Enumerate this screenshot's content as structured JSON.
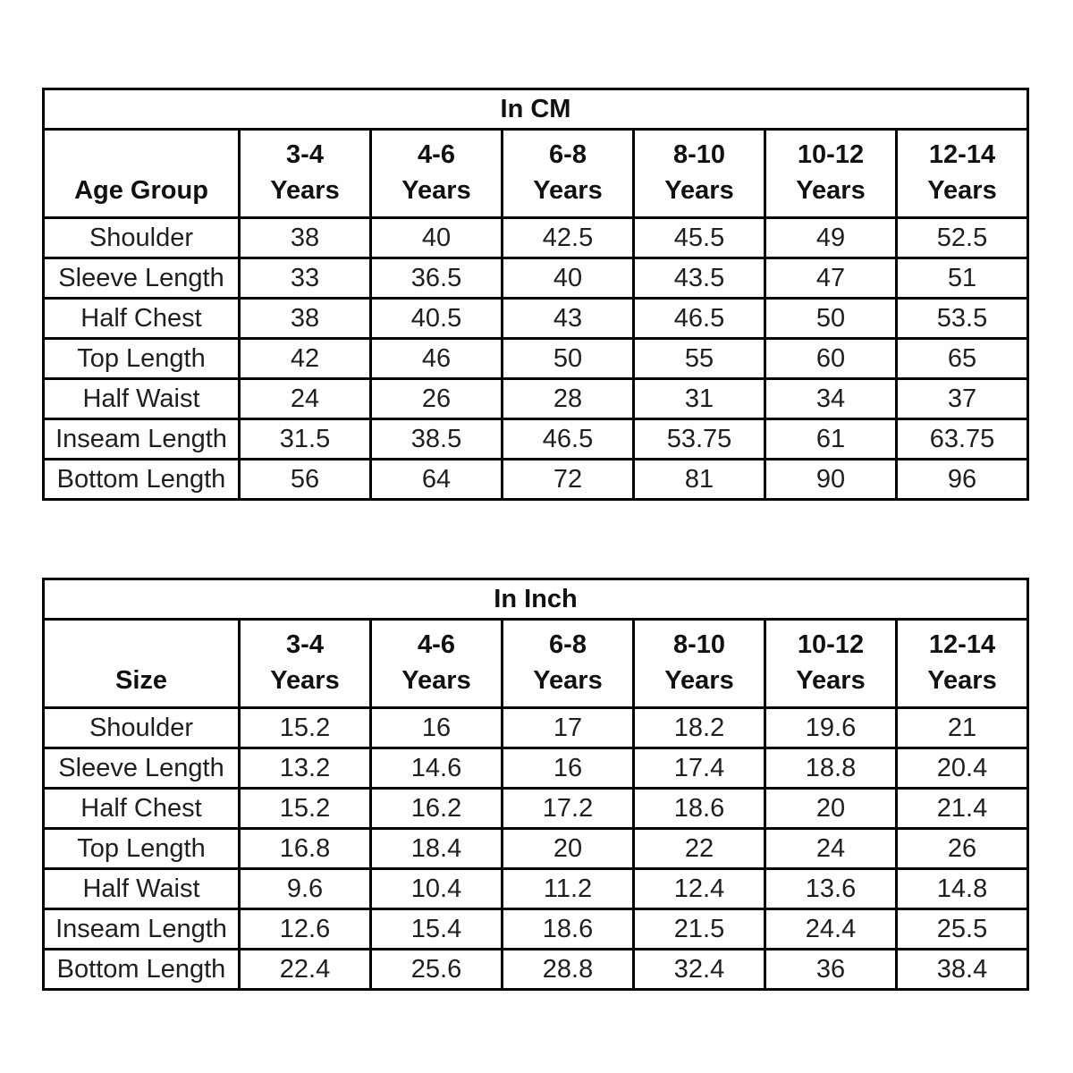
{
  "page": {
    "background_color": "#ffffff",
    "text_color": "#1f1f1f",
    "border_color": "#000000"
  },
  "chart_data": [
    {
      "type": "table",
      "title": "In CM",
      "row_header": "Age Group",
      "columns": [
        "3-4\nYears",
        "4-6\nYears",
        "6-8\nYears",
        "8-10\nYears",
        "10-12\nYears",
        "12-14\nYears"
      ],
      "rows": [
        {
          "label": "Shoulder",
          "values": [
            "38",
            "40",
            "42.5",
            "45.5",
            "49",
            "52.5"
          ]
        },
        {
          "label": "Sleeve Length",
          "values": [
            "33",
            "36.5",
            "40",
            "43.5",
            "47",
            "51"
          ]
        },
        {
          "label": "Half Chest",
          "values": [
            "38",
            "40.5",
            "43",
            "46.5",
            "50",
            "53.5"
          ]
        },
        {
          "label": "Top Length",
          "values": [
            "42",
            "46",
            "50",
            "55",
            "60",
            "65"
          ]
        },
        {
          "label": "Half Waist",
          "values": [
            "24",
            "26",
            "28",
            "31",
            "34",
            "37"
          ]
        },
        {
          "label": "Inseam Length",
          "values": [
            "31.5",
            "38.5",
            "46.5",
            "53.75",
            "61",
            "63.75"
          ]
        },
        {
          "label": "Bottom Length",
          "values": [
            "56",
            "64",
            "72",
            "81",
            "90",
            "96"
          ]
        }
      ]
    },
    {
      "type": "table",
      "title": "In Inch",
      "row_header": "Size",
      "columns": [
        "3-4\nYears",
        "4-6\nYears",
        "6-8\nYears",
        "8-10\nYears",
        "10-12\nYears",
        "12-14\nYears"
      ],
      "rows": [
        {
          "label": "Shoulder",
          "values": [
            "15.2",
            "16",
            "17",
            "18.2",
            "19.6",
            "21"
          ]
        },
        {
          "label": "Sleeve Length",
          "values": [
            "13.2",
            "14.6",
            "16",
            "17.4",
            "18.8",
            "20.4"
          ]
        },
        {
          "label": "Half Chest",
          "values": [
            "15.2",
            "16.2",
            "17.2",
            "18.6",
            "20",
            "21.4"
          ]
        },
        {
          "label": "Top Length",
          "values": [
            "16.8",
            "18.4",
            "20",
            "22",
            "24",
            "26"
          ]
        },
        {
          "label": "Half Waist",
          "values": [
            "9.6",
            "10.4",
            "11.2",
            "12.4",
            "13.6",
            "14.8"
          ]
        },
        {
          "label": "Inseam Length",
          "values": [
            "12.6",
            "15.4",
            "18.6",
            "21.5",
            "24.4",
            "25.5"
          ]
        },
        {
          "label": "Bottom Length",
          "values": [
            "22.4",
            "25.6",
            "28.8",
            "32.4",
            "36",
            "38.4"
          ]
        }
      ]
    }
  ]
}
